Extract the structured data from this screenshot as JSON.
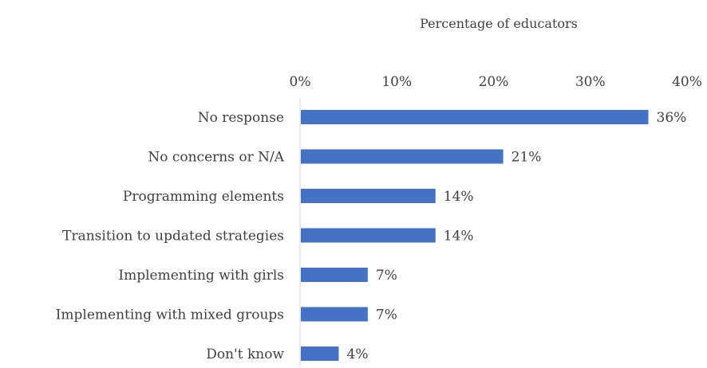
{
  "chart_data": {
    "type": "bar",
    "orientation": "horizontal",
    "title": "",
    "xlabel": "Percentage of educators",
    "xaxis_position": "top",
    "ylabel": "",
    "xlim": [
      0,
      40
    ],
    "x_ticks": [
      0,
      10,
      20,
      30,
      40
    ],
    "x_tick_labels": [
      "0%",
      "10%",
      "20%",
      "30%",
      "40%"
    ],
    "categories": [
      "No response",
      "No concerns or N/A",
      "Programming elements",
      "Transition to updated strategies",
      "Implementing with girls",
      "Implementing with mixed groups",
      "Don't know"
    ],
    "values": [
      36,
      21,
      14,
      14,
      7,
      7,
      4
    ],
    "data_labels": [
      "36%",
      "21%",
      "14%",
      "14%",
      "7%",
      "7%",
      "4%"
    ],
    "bar_color": "#4472C4",
    "axis_color": "#D9D9D9",
    "grid": false,
    "legend": "none"
  }
}
